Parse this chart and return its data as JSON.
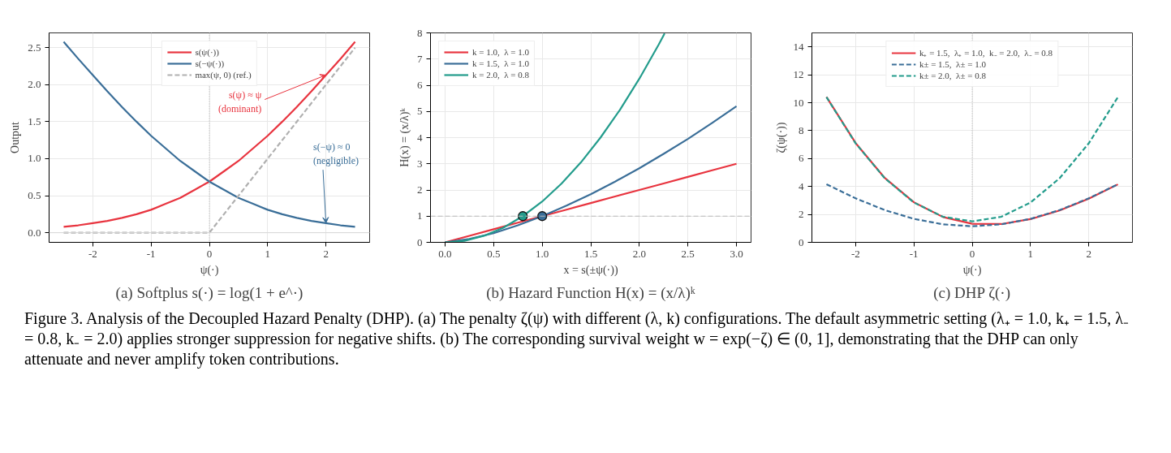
{
  "chart_data": [
    {
      "type": "line",
      "title": "(a) Softplus s(·) = log(1 + e^·)",
      "xlabel": "ψ(·)",
      "ylabel": "Output",
      "x": [
        -2.5,
        -2.25,
        -2,
        -1.75,
        -1.5,
        -1.25,
        -1,
        -0.75,
        -0.5,
        -0.25,
        0,
        0.25,
        0.5,
        0.75,
        1,
        1.25,
        1.5,
        1.75,
        2,
        2.25,
        2.5
      ],
      "series": [
        {
          "name": "s(ψ(·))",
          "color": "#e8343f",
          "values": [
            0.08,
            0.1,
            0.13,
            0.16,
            0.2,
            0.25,
            0.31,
            0.39,
            0.47,
            0.58,
            0.69,
            0.83,
            0.97,
            1.14,
            1.31,
            1.5,
            1.7,
            1.91,
            2.13,
            2.35,
            2.58
          ]
        },
        {
          "name": "s(−ψ(·))",
          "color": "#3a6e98",
          "values": [
            2.58,
            2.35,
            2.13,
            1.91,
            1.7,
            1.5,
            1.31,
            1.14,
            0.97,
            0.83,
            0.69,
            0.58,
            0.47,
            0.39,
            0.31,
            0.25,
            0.2,
            0.16,
            0.13,
            0.1,
            0.08
          ]
        },
        {
          "name": "max(ψ, 0) (ref.)",
          "color": "#b0b0b0",
          "line_style": "dashed",
          "x": [
            -2.5,
            0,
            2.5
          ],
          "values": [
            0,
            0,
            2.5
          ]
        }
      ],
      "xlim": [
        -2.75,
        2.75
      ],
      "xticks": [
        -2,
        -1,
        0,
        1,
        2
      ],
      "ylim": [
        -0.13,
        2.7
      ],
      "yticks": [
        {
          "value": 0,
          "label": "0.0"
        },
        0.5,
        {
          "value": 1,
          "label": "1.0"
        },
        1.5,
        {
          "value": 2,
          "label": "2.0"
        },
        2.5
      ],
      "ref_lines": [
        {
          "axis": "x",
          "value": 0,
          "color": "#aaaaaa",
          "line_style": "dotted"
        },
        {
          "axis": "y",
          "value": 0,
          "color": "#d8d8d8",
          "line_style": "solid"
        }
      ],
      "annotations": [
        {
          "text": "s(ψ) ≈ ψ\n(dominant)",
          "x": 2,
          "y": 2.13
        },
        {
          "text": "s(−ψ) ≈ 0\n(negligible)",
          "x": 2,
          "y": 0.13
        }
      ],
      "grid": true,
      "legend": "top"
    },
    {
      "type": "line",
      "title": "(b) Hazard Function H(x) = (x/λ)ᵏ",
      "xlabel": "x = s(±ψ(·))",
      "ylabel": "H(x) = (x/λ)ᵏ",
      "x": [
        0,
        0.25,
        0.5,
        0.75,
        1,
        1.25,
        1.5,
        1.75,
        2,
        2.25,
        2.5,
        2.75,
        3
      ],
      "series": [
        {
          "name": "k = 1.0,  λ = 1.0",
          "color": "#e8343f",
          "values": [
            0,
            0.25,
            0.5,
            0.75,
            1,
            1.25,
            1.5,
            1.75,
            2,
            2.25,
            2.5,
            2.75,
            3
          ]
        },
        {
          "name": "k = 1.5,  λ = 1.0",
          "color": "#3a6e98",
          "values": [
            0,
            0.13,
            0.35,
            0.65,
            1,
            1.4,
            1.84,
            2.32,
            2.83,
            3.38,
            3.95,
            4.56,
            5.2
          ]
        },
        {
          "name": "k = 2.0,  λ = 0.8",
          "color": "#239c8c",
          "x": [
            0,
            0.2,
            0.4,
            0.6,
            0.8,
            1.0,
            1.2,
            1.4,
            1.6,
            1.8,
            2.0,
            2.2,
            2.26
          ],
          "values": [
            0,
            0.06,
            0.25,
            0.56,
            1,
            1.56,
            2.25,
            3.06,
            4,
            5.06,
            6.25,
            7.56,
            7.98
          ]
        },
        {
          "type": "scatter",
          "marker": "circle",
          "color": "#239c8c",
          "x": [
            0.8
          ],
          "values": [
            1
          ]
        },
        {
          "type": "scatter",
          "marker": "circle",
          "color": "#3a6e98",
          "x": [
            1.0
          ],
          "values": [
            1
          ]
        }
      ],
      "xlim": [
        -0.15,
        3.15
      ],
      "xticks": [
        {
          "value": 0,
          "label": "0.0"
        },
        0.5,
        {
          "value": 1,
          "label": "1.0"
        },
        1.5,
        {
          "value": 2,
          "label": "2.0"
        },
        2.5,
        {
          "value": 3,
          "label": "3.0"
        }
      ],
      "ylim": [
        0,
        8
      ],
      "yticks": [
        0,
        1,
        2,
        3,
        4,
        5,
        6,
        7,
        8
      ],
      "ref_lines": [
        {
          "axis": "y",
          "value": 1,
          "color": "#bbbbbb",
          "line_style": "dashed"
        }
      ],
      "grid": true,
      "legend": "top left"
    },
    {
      "type": "line",
      "title": "(c) DHP ζ(·)",
      "xlabel": "ψ(·)",
      "ylabel": "ζ(ψ(·))",
      "x": [
        -2.5,
        -2,
        -1.5,
        -1,
        -0.5,
        0,
        0.5,
        1,
        1.5,
        2,
        2.5
      ],
      "series": [
        {
          "name": "k₊ = 1.5,  λ₊ = 1.0,  k₋ = 2.0,  λ₋ = 0.8",
          "color": "#e8343f",
          "values": [
            10.41,
            7.11,
            4.61,
            2.87,
            1.81,
            1.33,
            1.31,
            1.66,
            2.28,
            3.13,
            4.15
          ]
        },
        {
          "name": "k± = 1.5,  λ± = 1.0",
          "color": "#3a6e98",
          "line_style": "dashed",
          "values": [
            4.16,
            3.15,
            2.31,
            1.68,
            1.29,
            1.15,
            1.29,
            1.68,
            2.31,
            3.15,
            4.16
          ]
        },
        {
          "name": "k± = 2.0,  λ± = 0.8",
          "color": "#239c8c",
          "line_style": "dashed",
          "values": [
            10.4,
            7.09,
            4.59,
            2.85,
            1.83,
            1.5,
            1.83,
            2.85,
            4.59,
            7.09,
            10.4
          ]
        }
      ],
      "xlim": [
        -2.75,
        2.75
      ],
      "xticks": [
        -2,
        -1,
        0,
        1,
        2
      ],
      "ylim": [
        0,
        15
      ],
      "yticks": [
        0,
        2,
        4,
        6,
        8,
        10,
        12,
        14
      ],
      "ref_lines": [
        {
          "axis": "x",
          "value": 0,
          "color": "#aaaaaa",
          "line_style": "dotted"
        }
      ],
      "annotations": [
        "Figure 3. Analysis of the Decoupled Hazard Penalty (DHP). (a) The penalty ζ(ψ) with different (λ, k) configurations. The default asymmetric setting (λ₊ = 1.0, k₊ = 1.5, λ₋ = 0.8, k₋ = 2.0) applies stronger suppression for negative shifts. (b) The corresponding survival weight w = exp(−ζ) ∈ (0, 1], demonstrating that the DHP can only attenuate and never amplify token contributions."
      ],
      "grid": true,
      "legend": "top"
    }
  ]
}
